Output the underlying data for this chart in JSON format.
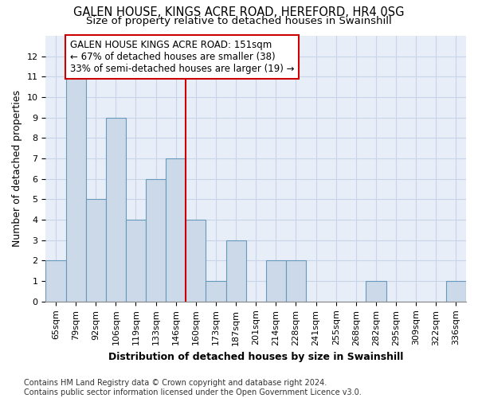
{
  "title1": "GALEN HOUSE, KINGS ACRE ROAD, HEREFORD, HR4 0SG",
  "title2": "Size of property relative to detached houses in Swainshill",
  "xlabel": "Distribution of detached houses by size in Swainshill",
  "ylabel": "Number of detached properties",
  "categories": [
    "65sqm",
    "79sqm",
    "92sqm",
    "106sqm",
    "119sqm",
    "133sqm",
    "146sqm",
    "160sqm",
    "173sqm",
    "187sqm",
    "201sqm",
    "214sqm",
    "228sqm",
    "241sqm",
    "255sqm",
    "268sqm",
    "282sqm",
    "295sqm",
    "309sqm",
    "322sqm",
    "336sqm"
  ],
  "values": [
    2,
    11,
    5,
    9,
    4,
    6,
    7,
    4,
    1,
    3,
    0,
    2,
    2,
    0,
    0,
    0,
    1,
    0,
    0,
    0,
    1
  ],
  "bar_color": "#ccd9e8",
  "bar_edge_color": "#6699bb",
  "vline_x_index": 7.5,
  "vline_color": "#cc0000",
  "annotation_text": "GALEN HOUSE KINGS ACRE ROAD: 151sqm\n← 67% of detached houses are smaller (38)\n33% of semi-detached houses are larger (19) →",
  "annotation_box_color": "#ffffff",
  "annotation_box_edge_color": "#cc0000",
  "ylim": [
    0,
    13
  ],
  "yticks": [
    0,
    1,
    2,
    3,
    4,
    5,
    6,
    7,
    8,
    9,
    10,
    11,
    12,
    13
  ],
  "footnote": "Contains HM Land Registry data © Crown copyright and database right 2024.\nContains public sector information licensed under the Open Government Licence v3.0.",
  "title_fontsize": 10.5,
  "subtitle_fontsize": 9.5,
  "axis_label_fontsize": 9,
  "tick_fontsize": 8,
  "annotation_fontsize": 8.5,
  "footnote_fontsize": 7,
  "grid_color": "#c8d4e8",
  "background_color": "#ffffff",
  "plot_bg_color": "#e8eef8"
}
